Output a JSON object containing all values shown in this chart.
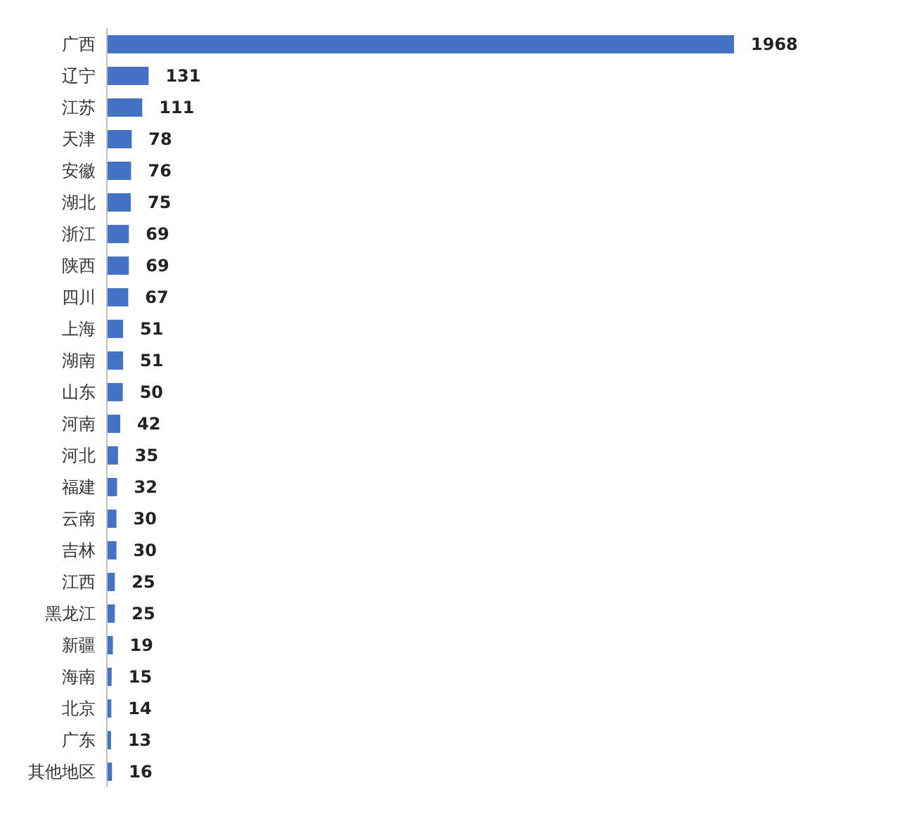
{
  "chart_data": {
    "type": "bar",
    "orientation": "horizontal",
    "categories": [
      "广西",
      "辽宁",
      "江苏",
      "天津",
      "安徽",
      "湖北",
      "浙江",
      "陕西",
      "四川",
      "上海",
      "湖南",
      "山东",
      "河南",
      "河北",
      "福建",
      "云南",
      "吉林",
      "江西",
      "黑龙江",
      "新疆",
      "海南",
      "北京",
      "广东",
      "其他地区"
    ],
    "values": [
      1968,
      131,
      111,
      78,
      76,
      75,
      69,
      69,
      67,
      51,
      51,
      50,
      42,
      35,
      32,
      30,
      30,
      25,
      25,
      19,
      15,
      14,
      13,
      16
    ],
    "color": "#4472c4",
    "data_labels": true,
    "tick_labels": "y"
  }
}
